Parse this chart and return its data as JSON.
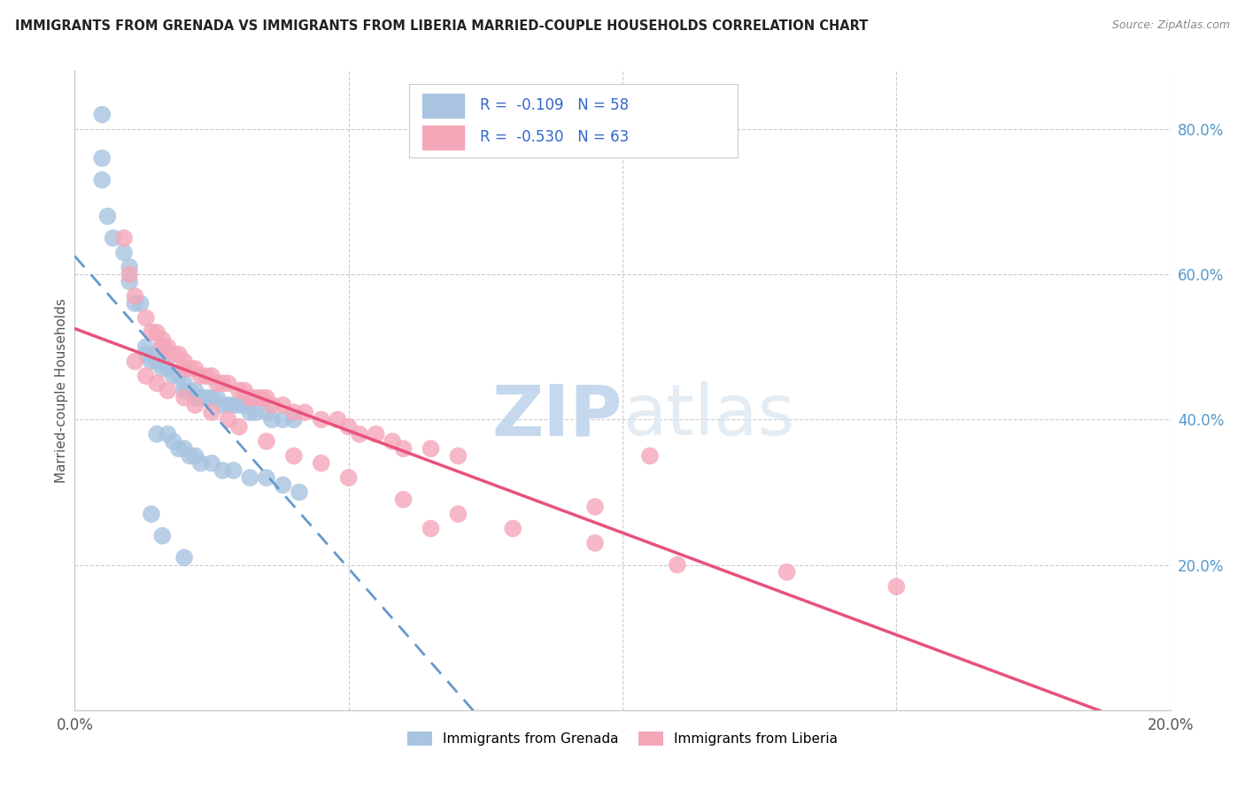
{
  "title": "IMMIGRANTS FROM GRENADA VS IMMIGRANTS FROM LIBERIA MARRIED-COUPLE HOUSEHOLDS CORRELATION CHART",
  "source": "Source: ZipAtlas.com",
  "ylabel": "Married-couple Households",
  "legend_grenada": "Immigrants from Grenada",
  "legend_liberia": "Immigrants from Liberia",
  "R_grenada": "-0.109",
  "N_grenada": "58",
  "R_liberia": "-0.530",
  "N_liberia": "63",
  "color_grenada": "#a8c4e0",
  "color_liberia": "#f4a7b9",
  "line_color_grenada": "#6699cc",
  "line_color_liberia": "#e8527a",
  "background_color": "#ffffff",
  "right_ytick_labels": [
    "20.0%",
    "40.0%",
    "60.0%",
    "80.0%"
  ],
  "right_ytick_values": [
    0.2,
    0.4,
    0.6,
    0.8
  ],
  "xlim": [
    0.0,
    0.2
  ],
  "ylim": [
    0.0,
    0.88
  ],
  "grenada_x": [
    0.005,
    0.005,
    0.005,
    0.006,
    0.007,
    0.009,
    0.01,
    0.01,
    0.011,
    0.012,
    0.013,
    0.013,
    0.014,
    0.015,
    0.015,
    0.016,
    0.016,
    0.017,
    0.018,
    0.019,
    0.02,
    0.02,
    0.021,
    0.022,
    0.022,
    0.023,
    0.024,
    0.025,
    0.026,
    0.027,
    0.028,
    0.029,
    0.03,
    0.031,
    0.032,
    0.033,
    0.035,
    0.036,
    0.038,
    0.04,
    0.015,
    0.017,
    0.018,
    0.019,
    0.02,
    0.021,
    0.022,
    0.023,
    0.025,
    0.027,
    0.029,
    0.032,
    0.035,
    0.038,
    0.041,
    0.014,
    0.016,
    0.02
  ],
  "grenada_y": [
    0.82,
    0.76,
    0.73,
    0.68,
    0.65,
    0.63,
    0.61,
    0.59,
    0.56,
    0.56,
    0.5,
    0.49,
    0.48,
    0.49,
    0.48,
    0.48,
    0.47,
    0.47,
    0.46,
    0.46,
    0.45,
    0.44,
    0.44,
    0.44,
    0.43,
    0.43,
    0.43,
    0.43,
    0.43,
    0.42,
    0.42,
    0.42,
    0.42,
    0.42,
    0.41,
    0.41,
    0.41,
    0.4,
    0.4,
    0.4,
    0.38,
    0.38,
    0.37,
    0.36,
    0.36,
    0.35,
    0.35,
    0.34,
    0.34,
    0.33,
    0.33,
    0.32,
    0.32,
    0.31,
    0.3,
    0.27,
    0.24,
    0.21
  ],
  "liberia_x": [
    0.009,
    0.01,
    0.011,
    0.013,
    0.014,
    0.015,
    0.016,
    0.016,
    0.017,
    0.018,
    0.019,
    0.02,
    0.02,
    0.021,
    0.022,
    0.023,
    0.024,
    0.025,
    0.026,
    0.027,
    0.028,
    0.03,
    0.031,
    0.032,
    0.033,
    0.034,
    0.035,
    0.036,
    0.038,
    0.04,
    0.042,
    0.045,
    0.048,
    0.05,
    0.052,
    0.055,
    0.058,
    0.06,
    0.065,
    0.07,
    0.011,
    0.013,
    0.015,
    0.017,
    0.02,
    0.022,
    0.025,
    0.028,
    0.03,
    0.035,
    0.04,
    0.045,
    0.05,
    0.06,
    0.07,
    0.08,
    0.095,
    0.11,
    0.13,
    0.15,
    0.105,
    0.095,
    0.065
  ],
  "liberia_y": [
    0.65,
    0.6,
    0.57,
    0.54,
    0.52,
    0.52,
    0.51,
    0.5,
    0.5,
    0.49,
    0.49,
    0.48,
    0.47,
    0.47,
    0.47,
    0.46,
    0.46,
    0.46,
    0.45,
    0.45,
    0.45,
    0.44,
    0.44,
    0.43,
    0.43,
    0.43,
    0.43,
    0.42,
    0.42,
    0.41,
    0.41,
    0.4,
    0.4,
    0.39,
    0.38,
    0.38,
    0.37,
    0.36,
    0.36,
    0.35,
    0.48,
    0.46,
    0.45,
    0.44,
    0.43,
    0.42,
    0.41,
    0.4,
    0.39,
    0.37,
    0.35,
    0.34,
    0.32,
    0.29,
    0.27,
    0.25,
    0.23,
    0.2,
    0.19,
    0.17,
    0.35,
    0.28,
    0.25
  ]
}
